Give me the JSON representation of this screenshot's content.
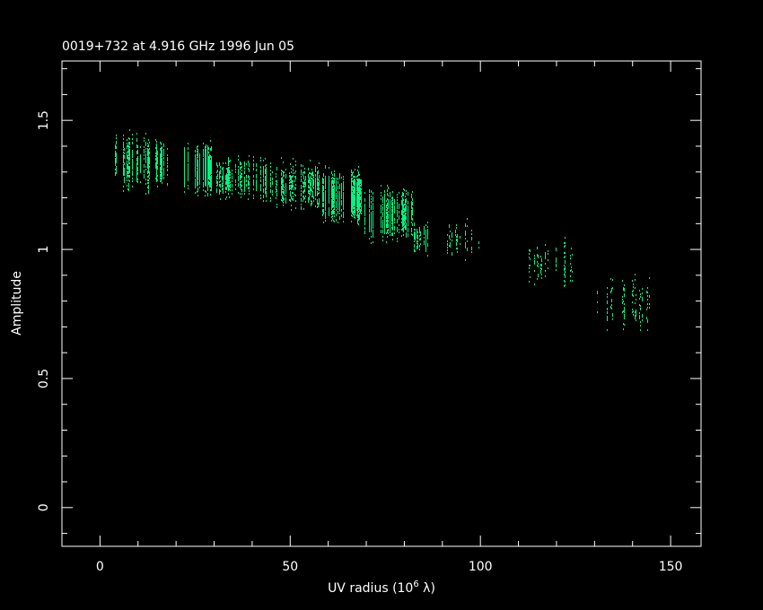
{
  "chart_data": {
    "type": "scatter",
    "title": "0019+732 at 4.916 GHz 1996 Jun 05",
    "xlabel": "UV radius  (10",
    "xlabel_sup": "6",
    "xlabel_tail": " λ)",
    "ylabel": "Amplitude",
    "xlim": [
      -10,
      158
    ],
    "ylim": [
      -0.15,
      1.73
    ],
    "x_ticks": [
      "0",
      "50",
      "100",
      "150"
    ],
    "y_ticks": [
      "0",
      "0.5",
      "1",
      "1.5"
    ],
    "x_minor_step": 10,
    "y_minor_step": 0.1,
    "grid": false,
    "point_color": "#00f582",
    "axis_color": "#ffffff",
    "background": "#000000",
    "point_groups": [
      {
        "uv_range": [
          3.5,
          4.5
        ],
        "amplitude_range": [
          1.25,
          1.46
        ],
        "density": "medium"
      },
      {
        "uv_range": [
          6,
          8.5
        ],
        "amplitude_range": [
          1.22,
          1.46
        ],
        "density": "high"
      },
      {
        "uv_range": [
          9.5,
          13
        ],
        "amplitude_range": [
          1.22,
          1.46
        ],
        "density": "high"
      },
      {
        "uv_range": [
          14.5,
          18.5
        ],
        "amplitude_range": [
          1.24,
          1.43
        ],
        "density": "high"
      },
      {
        "uv_range": [
          21.5,
          29.5
        ],
        "amplitude_range": [
          1.21,
          1.42
        ],
        "density": "very high"
      },
      {
        "uv_range": [
          30,
          44.5
        ],
        "amplitude_range": [
          1.19,
          1.37
        ],
        "density": "medium"
      },
      {
        "uv_range": [
          44.5,
          58
        ],
        "amplitude_range": [
          1.15,
          1.35
        ],
        "density": "medium"
      },
      {
        "uv_range": [
          58,
          69
        ],
        "amplitude_range": [
          1.1,
          1.32
        ],
        "density": "very high"
      },
      {
        "uv_range": [
          69,
          82
        ],
        "amplitude_range": [
          1.03,
          1.25
        ],
        "density": "high"
      },
      {
        "uv_range": [
          82,
          86
        ],
        "amplitude_range": [
          0.98,
          1.12
        ],
        "density": "medium"
      },
      {
        "uv_range": [
          91,
          101
        ],
        "amplitude_range": [
          0.95,
          1.13
        ],
        "density": "low"
      },
      {
        "uv_range": [
          112.5,
          125
        ],
        "amplitude_range": [
          0.85,
          1.06
        ],
        "density": "low"
      },
      {
        "uv_range": [
          129.5,
          144.5
        ],
        "amplitude_range": [
          0.67,
          0.92
        ],
        "density": "low"
      }
    ]
  }
}
